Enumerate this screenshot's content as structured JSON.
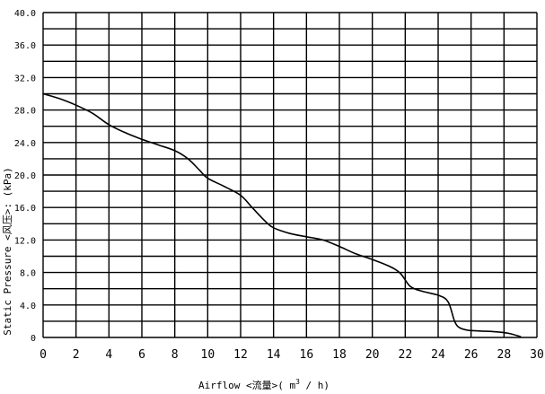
{
  "chart_data": {
    "type": "line",
    "xlabel_parts": {
      "prefix": "Airflow <流量>( m",
      "sup": "3",
      "suffix": " / h)"
    },
    "ylabel": "Static Pressure <风压>: (kPa)",
    "xlim": [
      0,
      30
    ],
    "ylim": [
      0,
      40
    ],
    "x_ticks": [
      "0",
      "2",
      "4",
      "6",
      "8",
      "10",
      "12",
      "14",
      "16",
      "18",
      "20",
      "22",
      "24",
      "26",
      "28",
      "30"
    ],
    "y_ticks": [
      "0",
      "4.0",
      "8.0",
      "12.0",
      "16.0",
      "20.0",
      "24.0",
      "28.0",
      "32.0",
      "36.0",
      "40.0"
    ],
    "grid": true,
    "series": [
      {
        "x": [
          0,
          1,
          2,
          3,
          4,
          5,
          6,
          7,
          8,
          8.8,
          9.5,
          10,
          11,
          12,
          12.7,
          13.5,
          14,
          15,
          16,
          17,
          18,
          19,
          20,
          21,
          21.7,
          22.3,
          23,
          24,
          24.6,
          25,
          25.3,
          25.8,
          26.5,
          27.5,
          28.3,
          29
        ],
        "y": [
          30.0,
          29.4,
          28.6,
          27.6,
          26.2,
          25.2,
          24.4,
          23.7,
          23.0,
          22.0,
          20.6,
          19.6,
          18.6,
          17.5,
          16.0,
          14.3,
          13.5,
          12.8,
          12.4,
          12.0,
          11.2,
          10.3,
          9.6,
          8.8,
          7.9,
          6.3,
          5.7,
          5.2,
          4.4,
          2.0,
          1.2,
          0.9,
          0.8,
          0.7,
          0.5,
          0.1
        ]
      }
    ]
  }
}
